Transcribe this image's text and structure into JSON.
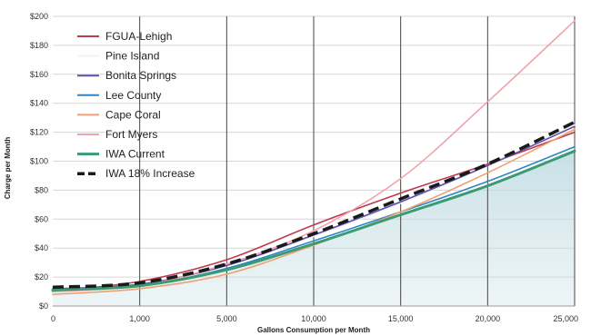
{
  "chart_data": {
    "type": "line",
    "title": "",
    "xlabel": "Gallons Consumption per Month",
    "ylabel": "Charge per Month",
    "x": [
      0,
      1000,
      5000,
      10000,
      15000,
      20000,
      25000
    ],
    "x_tick_labels": [
      "0",
      "1,000",
      "5,000",
      "10,000",
      "15,000",
      "20,000",
      "25,000"
    ],
    "ylim": [
      0,
      200
    ],
    "y_ticks": [
      0,
      20,
      40,
      60,
      80,
      100,
      120,
      140,
      160,
      180,
      200
    ],
    "y_tick_labels": [
      "$0",
      "$20",
      "$40",
      "$60",
      "$80",
      "$100",
      "$120",
      "$140",
      "$160",
      "$180",
      "$200"
    ],
    "vertical_gridlines_at": [
      "1,000",
      "5,000",
      "10,000",
      "15,000",
      "20,000",
      "25,000"
    ],
    "legend_position": "top-left",
    "shaded_area_under": "IWA Current",
    "series": [
      {
        "name": "FGUA-Lehigh",
        "color": "#c0394f",
        "style": "solid",
        "values": [
          10,
          17,
          32,
          56,
          78,
          98,
          120
        ]
      },
      {
        "name": "Pine Island",
        "color": "#f2f2f2",
        "style": "solid",
        "values": [
          11,
          15,
          28,
          48,
          71,
          97,
          125
        ]
      },
      {
        "name": "Bonita Springs",
        "color": "#5a4fb0",
        "style": "solid",
        "values": [
          12,
          15,
          28,
          49,
          72,
          97,
          124
        ]
      },
      {
        "name": "Lee County",
        "color": "#2e86c8",
        "style": "solid",
        "values": [
          11,
          14,
          26,
          45,
          65,
          86,
          110
        ]
      },
      {
        "name": "Cape Coral",
        "color": "#f0a070",
        "style": "solid",
        "values": [
          8,
          12,
          22,
          42,
          65,
          92,
          122
        ]
      },
      {
        "name": "Fort Myers",
        "color": "#f2a3ac",
        "style": "solid",
        "values": [
          10,
          14,
          29,
          52,
          88,
          141,
          197
        ]
      },
      {
        "name": "IWA Current",
        "color": "#3a9a72",
        "style": "solid",
        "values": [
          11,
          14,
          25,
          43,
          63,
          83,
          107
        ]
      },
      {
        "name": "IWA 18% Increase",
        "color": "#1a1a1a",
        "style": "dashed",
        "values": [
          13,
          16,
          29,
          50,
          74,
          98,
          127
        ]
      }
    ]
  }
}
